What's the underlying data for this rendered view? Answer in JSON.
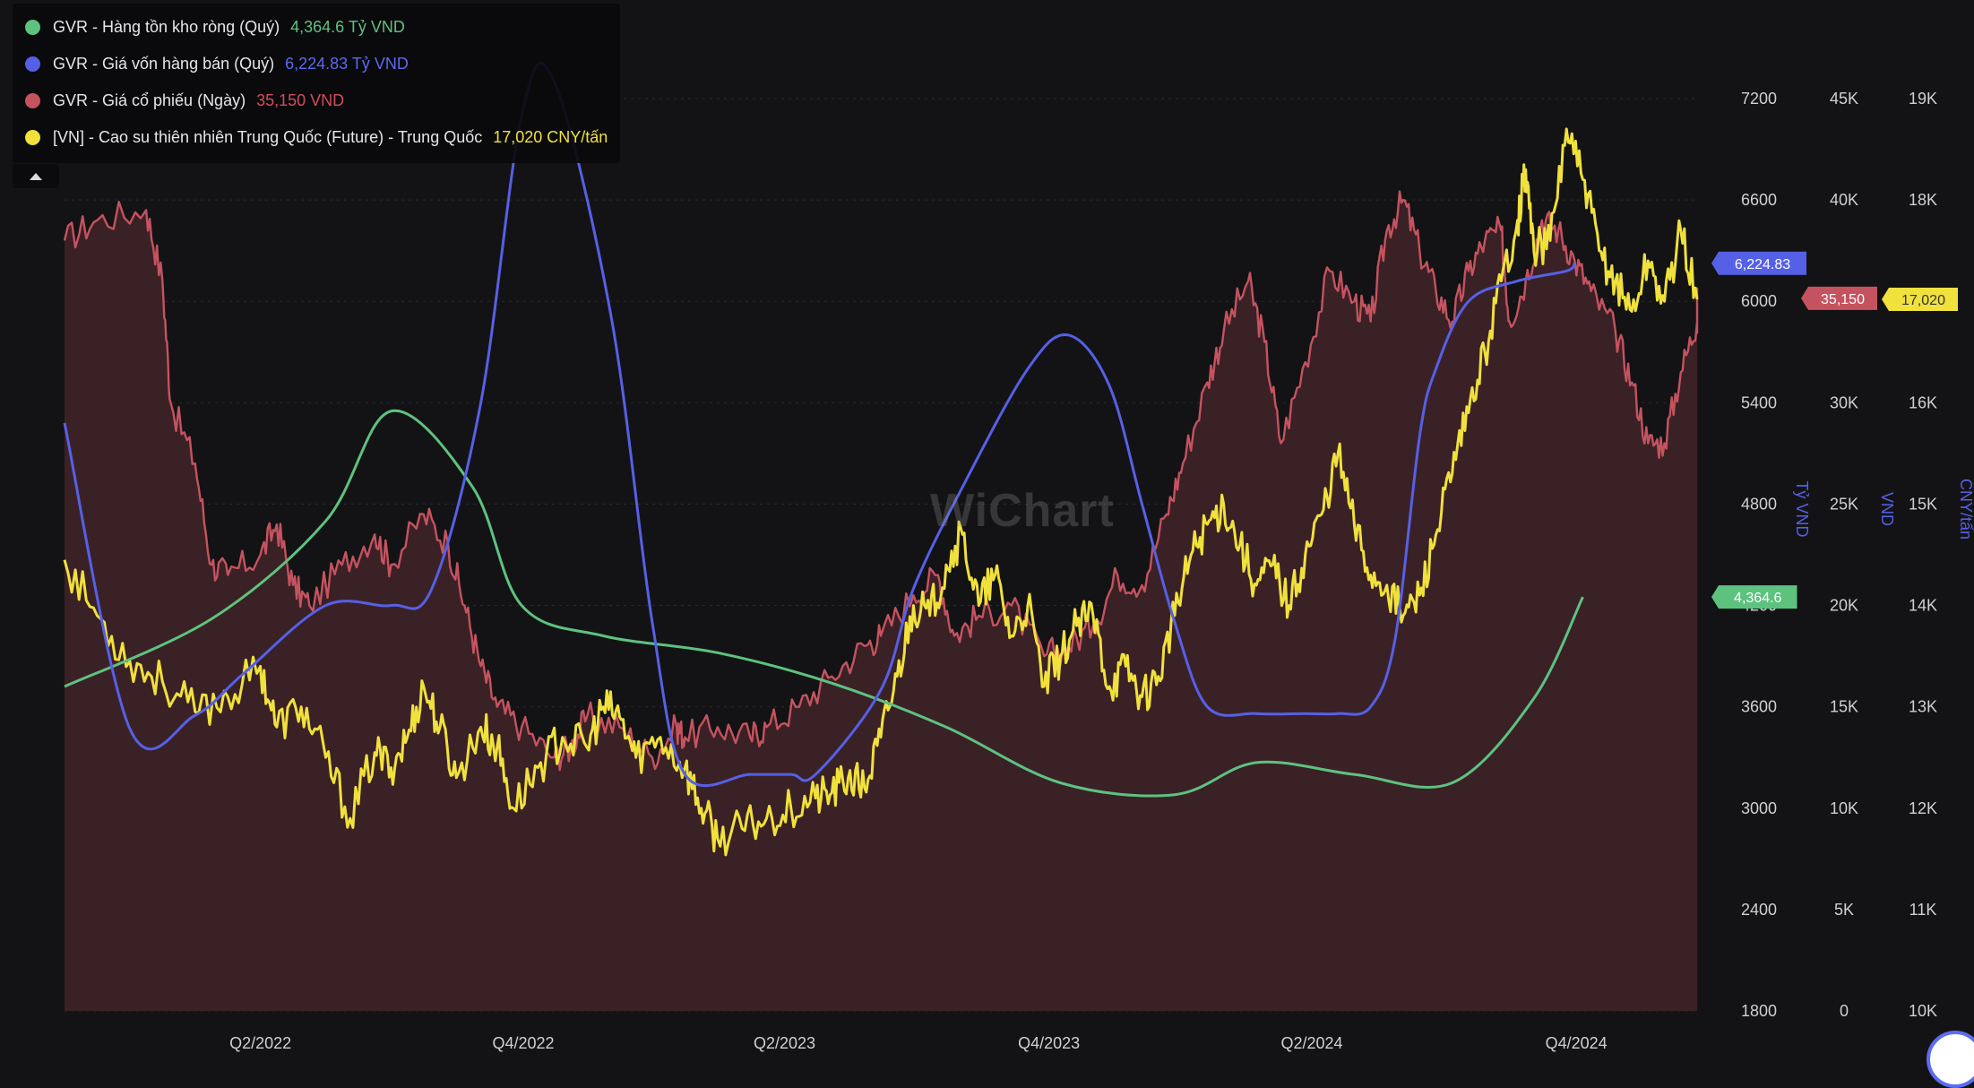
{
  "legend": {
    "items": [
      {
        "label": "GVR - Hàng tồn kho ròng (Quý)",
        "value": "4,364.6 Tỷ VND",
        "color": "#5ec27f"
      },
      {
        "label": "GVR - Giá vốn hàng bán (Quý)",
        "value": "6,224.83 Tỷ VND",
        "color": "#5660e6"
      },
      {
        "label": "GVR - Giá cổ phiếu (Ngày)",
        "value": "35,150 VND",
        "color": "#c5535f"
      },
      {
        "label": "[VN] - Cao su thiên nhiên Trung Quốc (Future) - Trung Quốc",
        "value": "17,020 CNY/tấn",
        "color": "#f0e13c"
      }
    ]
  },
  "watermark": "WiChart",
  "chart_data": {
    "type": "line",
    "x_ticks": [
      "Q2/2022",
      "Q4/2022",
      "Q2/2023",
      "Q4/2023",
      "Q2/2024",
      "Q4/2024"
    ],
    "axes": [
      {
        "id": "ty_vnd",
        "label": "Tỷ VND",
        "range": [
          1800,
          7200
        ],
        "ticks": [
          "1800",
          "2400",
          "3000",
          "3600",
          "4200",
          "4800",
          "5400",
          "6000",
          "6600",
          "7200"
        ],
        "color": "#5660e6"
      },
      {
        "id": "vnd",
        "label": "VND",
        "range": [
          0,
          45000
        ],
        "ticks": [
          "0",
          "5K",
          "10K",
          "15K",
          "20K",
          "25K",
          "30K",
          "35K",
          "40K",
          "45K"
        ],
        "color": "#5660e6"
      },
      {
        "id": "cny",
        "label": "CNY/tấn",
        "range": [
          10000,
          19000
        ],
        "ticks": [
          "10K",
          "11K",
          "12K",
          "13K",
          "14K",
          "15K",
          "16K",
          "17K",
          "18K",
          "19K"
        ],
        "color": "#5660e6"
      }
    ],
    "series": [
      {
        "name": "GVR - Hàng tồn kho ròng (Quý)",
        "axis": "ty_vnd",
        "color": "#5ec27f",
        "style": "smooth",
        "points": [
          [
            0,
            3720
          ],
          [
            0.09,
            4120
          ],
          [
            0.16,
            4700
          ],
          [
            0.2,
            5350
          ],
          [
            0.25,
            4900
          ],
          [
            0.28,
            4200
          ],
          [
            0.33,
            4020
          ],
          [
            0.4,
            3920
          ],
          [
            0.47,
            3740
          ],
          [
            0.54,
            3480
          ],
          [
            0.61,
            3150
          ],
          [
            0.68,
            3080
          ],
          [
            0.73,
            3270
          ],
          [
            0.79,
            3200
          ],
          [
            0.85,
            3150
          ],
          [
            0.9,
            3650
          ],
          [
            0.93,
            4250
          ]
        ],
        "last_value": "4,364.6"
      },
      {
        "name": "GVR - Giá vốn hàng bán (Quý)",
        "axis": "ty_vnd",
        "color": "#5660e6",
        "style": "smooth",
        "points": [
          [
            0,
            5280
          ],
          [
            0.04,
            3470
          ],
          [
            0.08,
            3550
          ],
          [
            0.11,
            3800
          ],
          [
            0.16,
            4200
          ],
          [
            0.2,
            4200
          ],
          [
            0.225,
            4300
          ],
          [
            0.255,
            5400
          ],
          [
            0.28,
            7100
          ],
          [
            0.3,
            7300
          ],
          [
            0.335,
            5900
          ],
          [
            0.36,
            4100
          ],
          [
            0.38,
            3200
          ],
          [
            0.42,
            3200
          ],
          [
            0.445,
            3200
          ],
          [
            0.46,
            3200
          ],
          [
            0.5,
            3700
          ],
          [
            0.52,
            4300
          ],
          [
            0.55,
            4900
          ],
          [
            0.59,
            5600
          ],
          [
            0.615,
            5800
          ],
          [
            0.64,
            5500
          ],
          [
            0.66,
            4800
          ],
          [
            0.68,
            4100
          ],
          [
            0.7,
            3600
          ],
          [
            0.73,
            3560
          ],
          [
            0.76,
            3560
          ],
          [
            0.78,
            3560
          ],
          [
            0.8,
            3600
          ],
          [
            0.815,
            4000
          ],
          [
            0.83,
            5200
          ],
          [
            0.84,
            5600
          ],
          [
            0.86,
            6000
          ],
          [
            0.89,
            6120
          ],
          [
            0.92,
            6180
          ],
          [
            0.925,
            6225
          ]
        ],
        "last_value": "6,224.83"
      },
      {
        "name": "GVR - Giá cổ phiếu (Ngày)",
        "axis": "vnd",
        "color": "#c5535f",
        "style": "jagged_area",
        "points": [
          [
            0,
            38000
          ],
          [
            0.02,
            39000
          ],
          [
            0.05,
            39500
          ],
          [
            0.06,
            36000
          ],
          [
            0.065,
            30000
          ],
          [
            0.08,
            27000
          ],
          [
            0.09,
            22000
          ],
          [
            0.1,
            21500
          ],
          [
            0.12,
            22500
          ],
          [
            0.13,
            24000
          ],
          [
            0.14,
            21000
          ],
          [
            0.15,
            20000
          ],
          [
            0.17,
            22000
          ],
          [
            0.19,
            23500
          ],
          [
            0.2,
            22000
          ],
          [
            0.22,
            24500
          ],
          [
            0.235,
            23000
          ],
          [
            0.245,
            20000
          ],
          [
            0.255,
            17000
          ],
          [
            0.265,
            15000
          ],
          [
            0.28,
            14000
          ],
          [
            0.3,
            12500
          ],
          [
            0.31,
            13000
          ],
          [
            0.32,
            14500
          ],
          [
            0.34,
            14000
          ],
          [
            0.36,
            12500
          ],
          [
            0.375,
            14000
          ],
          [
            0.38,
            13500
          ],
          [
            0.4,
            14000
          ],
          [
            0.42,
            13500
          ],
          [
            0.43,
            14000
          ],
          [
            0.45,
            15000
          ],
          [
            0.47,
            16500
          ],
          [
            0.49,
            18000
          ],
          [
            0.5,
            18500
          ],
          [
            0.52,
            20500
          ],
          [
            0.535,
            21500
          ],
          [
            0.545,
            18500
          ],
          [
            0.56,
            19500
          ],
          [
            0.58,
            20000
          ],
          [
            0.6,
            17500
          ],
          [
            0.615,
            18000
          ],
          [
            0.63,
            19000
          ],
          [
            0.645,
            21500
          ],
          [
            0.66,
            21000
          ],
          [
            0.675,
            24500
          ],
          [
            0.685,
            27000
          ],
          [
            0.7,
            31000
          ],
          [
            0.71,
            33500
          ],
          [
            0.725,
            36000
          ],
          [
            0.735,
            33000
          ],
          [
            0.745,
            28000
          ],
          [
            0.76,
            32000
          ],
          [
            0.775,
            36500
          ],
          [
            0.79,
            35000
          ],
          [
            0.8,
            34000
          ],
          [
            0.81,
            38500
          ],
          [
            0.82,
            40000
          ],
          [
            0.83,
            37500
          ],
          [
            0.84,
            35500
          ],
          [
            0.85,
            34000
          ],
          [
            0.86,
            36500
          ],
          [
            0.87,
            38000
          ],
          [
            0.88,
            38500
          ],
          [
            0.885,
            34000
          ],
          [
            0.895,
            36000
          ],
          [
            0.905,
            39000
          ],
          [
            0.915,
            38500
          ],
          [
            0.925,
            37000
          ],
          [
            0.935,
            35500
          ],
          [
            0.95,
            33500
          ],
          [
            0.96,
            31000
          ],
          [
            0.97,
            28000
          ],
          [
            0.98,
            28000
          ],
          [
            0.99,
            31500
          ],
          [
            1,
            34000
          ],
          [
            1,
            35150
          ]
        ],
        "last_value": "35,150"
      },
      {
        "name": "[VN] - Cao su thiên nhiên Trung Quốc (Future) - Trung Quốc",
        "axis": "cny",
        "color": "#f0e13c",
        "style": "jagged",
        "points": [
          [
            0,
            14450
          ],
          [
            0.02,
            13900
          ],
          [
            0.04,
            13450
          ],
          [
            0.06,
            13250
          ],
          [
            0.08,
            12950
          ],
          [
            0.1,
            13100
          ],
          [
            0.12,
            13400
          ],
          [
            0.13,
            12800
          ],
          [
            0.145,
            13000
          ],
          [
            0.16,
            12500
          ],
          [
            0.175,
            11900
          ],
          [
            0.19,
            12550
          ],
          [
            0.2,
            12400
          ],
          [
            0.21,
            12700
          ],
          [
            0.22,
            13200
          ],
          [
            0.23,
            12800
          ],
          [
            0.24,
            12300
          ],
          [
            0.255,
            12800
          ],
          [
            0.265,
            12600
          ],
          [
            0.275,
            12000
          ],
          [
            0.29,
            12400
          ],
          [
            0.305,
            12700
          ],
          [
            0.32,
            12600
          ],
          [
            0.33,
            13000
          ],
          [
            0.34,
            12900
          ],
          [
            0.35,
            12500
          ],
          [
            0.365,
            12700
          ],
          [
            0.38,
            12400
          ],
          [
            0.39,
            12000
          ],
          [
            0.4,
            11700
          ],
          [
            0.415,
            11800
          ],
          [
            0.43,
            11900
          ],
          [
            0.445,
            12000
          ],
          [
            0.46,
            12100
          ],
          [
            0.47,
            12150
          ],
          [
            0.48,
            12300
          ],
          [
            0.49,
            12200
          ],
          [
            0.5,
            12700
          ],
          [
            0.51,
            13300
          ],
          [
            0.52,
            14000
          ],
          [
            0.53,
            13900
          ],
          [
            0.54,
            14400
          ],
          [
            0.55,
            14700
          ],
          [
            0.56,
            14000
          ],
          [
            0.57,
            14300
          ],
          [
            0.58,
            13700
          ],
          [
            0.59,
            14000
          ],
          [
            0.6,
            13200
          ],
          [
            0.61,
            13500
          ],
          [
            0.62,
            13800
          ],
          [
            0.63,
            13900
          ],
          [
            0.64,
            13200
          ],
          [
            0.65,
            13400
          ],
          [
            0.66,
            13100
          ],
          [
            0.67,
            13300
          ],
          [
            0.68,
            13900
          ],
          [
            0.69,
            14500
          ],
          [
            0.7,
            14800
          ],
          [
            0.71,
            15000
          ],
          [
            0.72,
            14600
          ],
          [
            0.73,
            14200
          ],
          [
            0.74,
            14400
          ],
          [
            0.75,
            14000
          ],
          [
            0.76,
            14500
          ],
          [
            0.77,
            14900
          ],
          [
            0.78,
            15500
          ],
          [
            0.79,
            14800
          ],
          [
            0.8,
            14300
          ],
          [
            0.81,
            14200
          ],
          [
            0.82,
            13900
          ],
          [
            0.83,
            14100
          ],
          [
            0.84,
            14700
          ],
          [
            0.85,
            15300
          ],
          [
            0.86,
            15900
          ],
          [
            0.87,
            16500
          ],
          [
            0.88,
            17200
          ],
          [
            0.89,
            17800
          ],
          [
            0.895,
            18300
          ],
          [
            0.9,
            17500
          ],
          [
            0.91,
            17600
          ],
          [
            0.92,
            18700
          ],
          [
            0.93,
            18200
          ],
          [
            0.94,
            17500
          ],
          [
            0.95,
            17200
          ],
          [
            0.96,
            16900
          ],
          [
            0.97,
            17400
          ],
          [
            0.98,
            17000
          ],
          [
            0.99,
            17700
          ],
          [
            1,
            17020
          ]
        ],
        "last_value": "17,020"
      }
    ]
  }
}
